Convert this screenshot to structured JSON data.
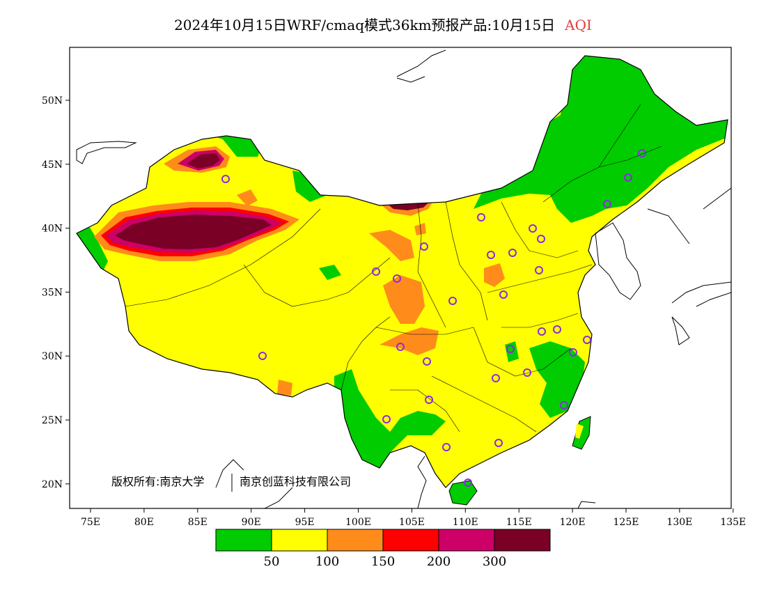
{
  "title": {
    "main": "2024年10月15日WRF/cmaq模式36km预报产品:10月15日",
    "variable": "AQI",
    "variable_color": "#e0403a"
  },
  "axes": {
    "lon_labels": [
      "75E",
      "80E",
      "85E",
      "90E",
      "95E",
      "100E",
      "105E",
      "110E",
      "115E",
      "120E",
      "125E",
      "130E",
      "135E"
    ],
    "lat_labels": [
      "50N",
      "45N",
      "40N",
      "35N",
      "30N",
      "25N",
      "20N"
    ]
  },
  "colorbar": {
    "colors": [
      "#00cc00",
      "#ffff00",
      "#ff8c1a",
      "#ff0000",
      "#cc0066",
      "#7a0026"
    ],
    "labels": [
      "50",
      "100",
      "150",
      "200",
      "300"
    ]
  },
  "copyright": {
    "left": "版权所有:南京大学",
    "right": "南京创蓝科技有限公司"
  }
}
